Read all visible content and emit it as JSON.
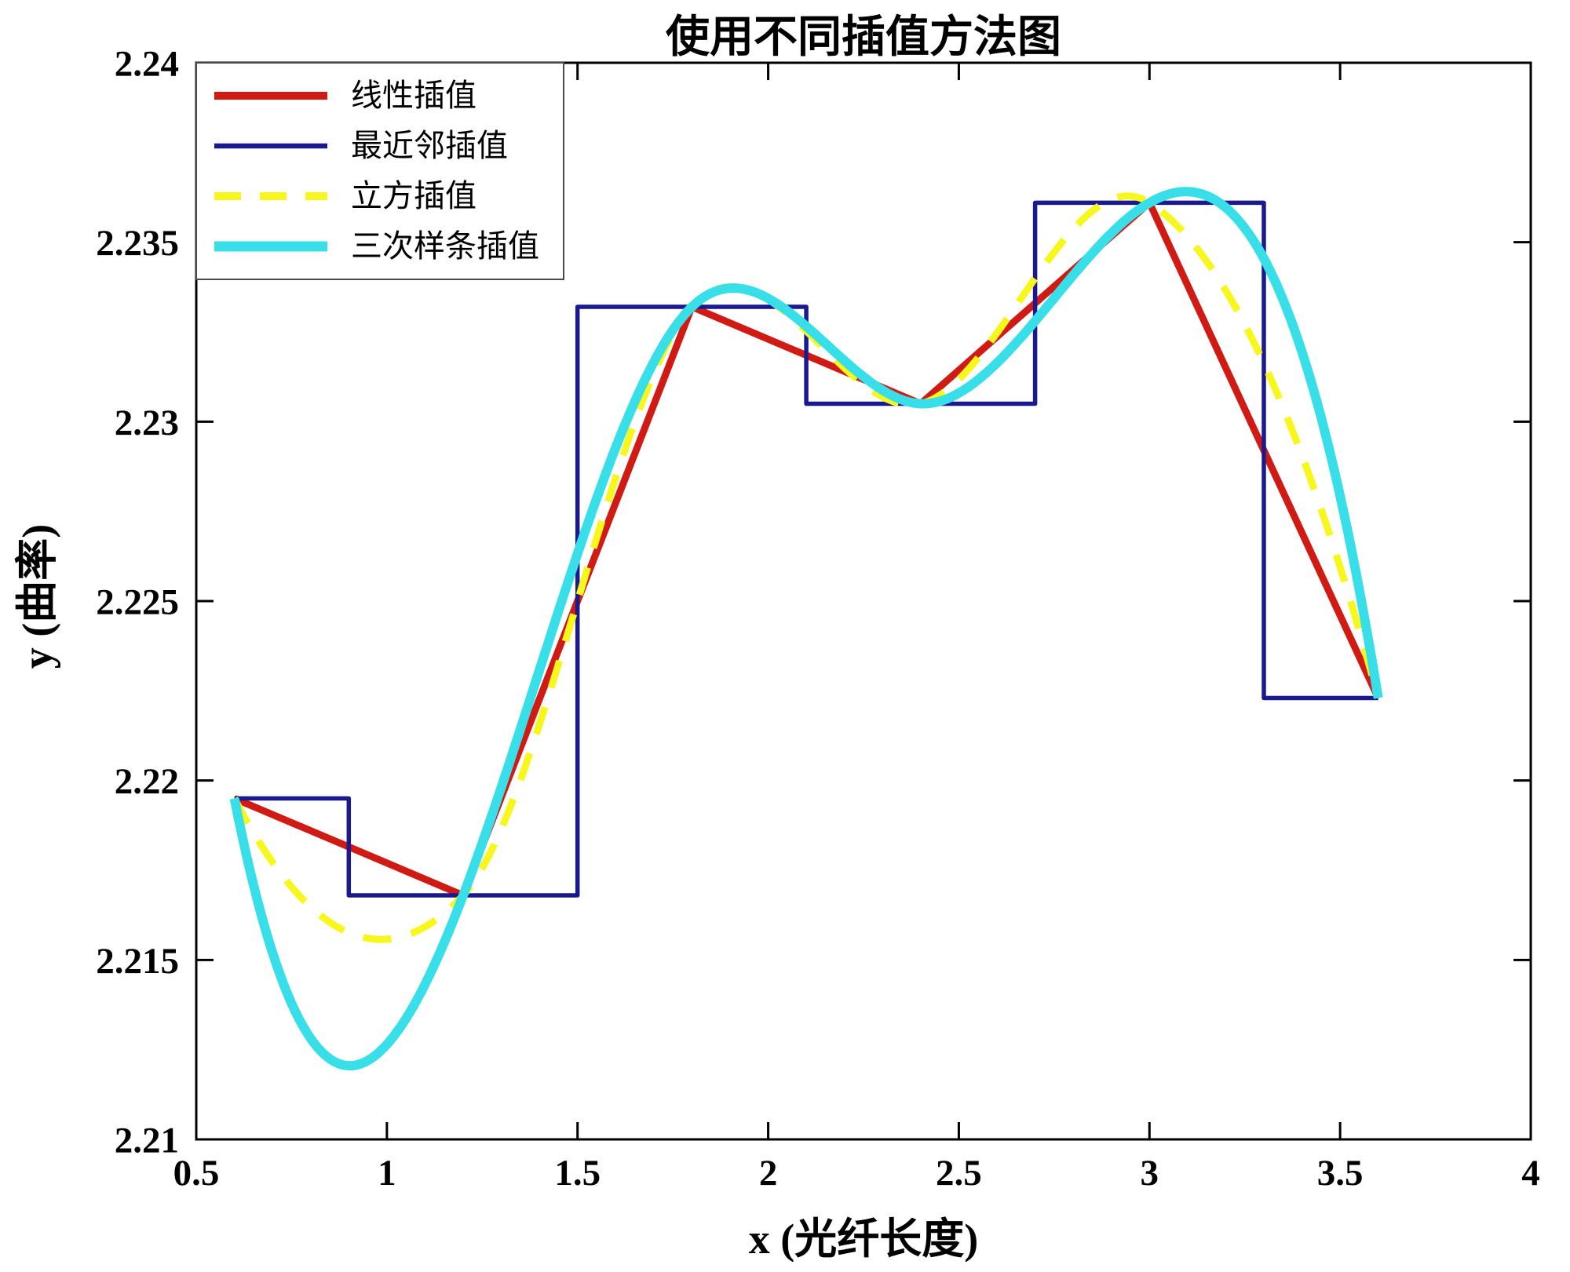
{
  "chart_data": {
    "type": "line",
    "title": "使用不同插值方法图",
    "xlabel": "x (光纤长度)",
    "ylabel": "y (曲率)",
    "xlim": [
      0.5,
      4
    ],
    "ylim": [
      2.21,
      2.24
    ],
    "xticks": [
      0.5,
      1,
      1.5,
      2,
      2.5,
      3,
      3.5,
      4
    ],
    "yticks": [
      2.21,
      2.215,
      2.22,
      2.225,
      2.23,
      2.235,
      2.24
    ],
    "grid": false,
    "legend_position": "top-left-inside",
    "axis_color": "#000000",
    "background": "#ffffff",
    "knots": {
      "x": [
        0.6,
        1.2,
        1.8,
        2.4,
        3.0,
        3.6
      ],
      "y": [
        2.2195,
        2.2168,
        2.2332,
        2.2305,
        2.2361,
        2.2223
      ]
    },
    "series": [
      {
        "name": "线性插值",
        "method": "linear",
        "color": "#d01b15",
        "width": 9,
        "dash": null
      },
      {
        "name": "最近邻插值",
        "method": "nearest",
        "color": "#1a1a8e",
        "width": 5.5,
        "dash": null
      },
      {
        "name": "立方插值",
        "method": "cubic",
        "color": "#f7f71d",
        "width": 9,
        "dash": [
          36,
          26
        ]
      },
      {
        "name": "三次样条插值",
        "method": "spline",
        "color": "#38dfe8",
        "width": 12,
        "dash": null
      }
    ]
  }
}
